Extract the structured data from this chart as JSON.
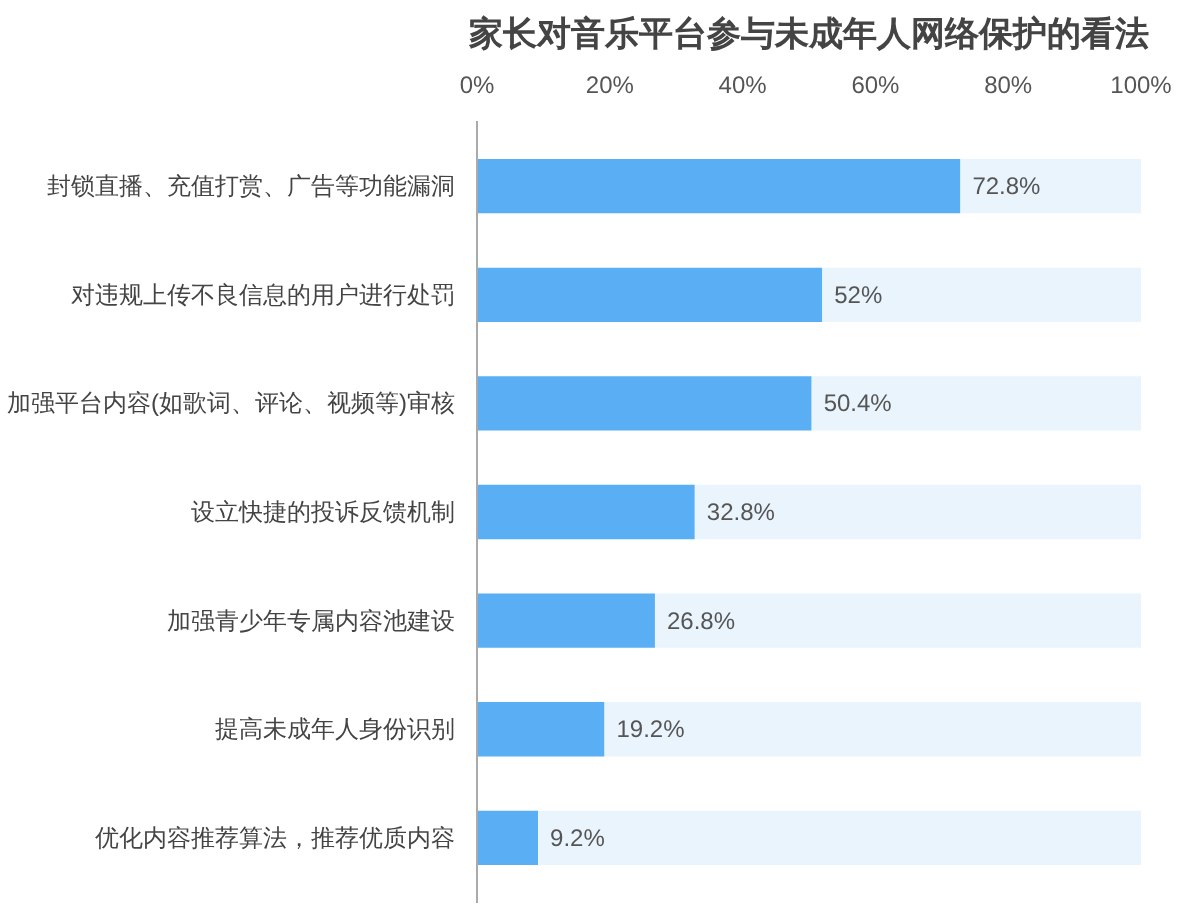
{
  "chart_data": {
    "type": "bar",
    "orientation": "horizontal",
    "stacked": true,
    "title": "家长对音乐平台参与未成年人网络保护的看法",
    "categories": [
      "封锁直播、充值打赏、广告等功能漏洞",
      "对违规上传不良信息的用户进行处罚",
      "加强平台内容(如歌词、评论、视频等)审核",
      "设立快捷的投诉反馈机制",
      "加强青少年专属内容池建设",
      "提高未成年人身份识别",
      "优化内容推荐算法，推荐优质内容"
    ],
    "series": [
      {
        "color": "#5aaef4",
        "values": [
          72.8,
          52,
          50.4,
          32.8,
          26.8,
          19.2,
          9.2
        ],
        "value_labels": [
          "72.8%",
          "52%",
          "50.4%",
          "32.8%",
          "26.8%",
          "19.2%",
          "9.2%"
        ]
      },
      {
        "color": "#eaf4fd",
        "values": [
          27.2,
          48,
          49.6,
          67.2,
          73.2,
          80.8,
          90.8
        ]
      }
    ],
    "xlim": [
      0,
      100
    ],
    "xticks": [
      {
        "value": 0,
        "label": "0%"
      },
      {
        "value": 20,
        "label": "20%"
      },
      {
        "value": 40,
        "label": "40%"
      },
      {
        "value": 60,
        "label": "60%"
      },
      {
        "value": 80,
        "label": "80%"
      },
      {
        "value": 100,
        "label": "100%"
      }
    ],
    "grid": false
  }
}
